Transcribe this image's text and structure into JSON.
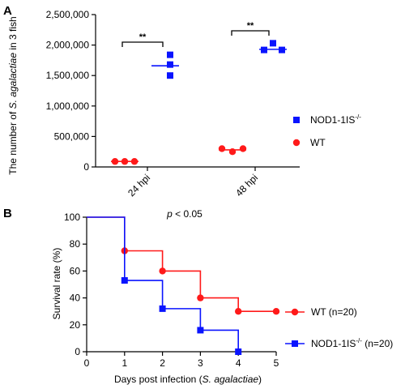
{
  "chart_data": [
    {
      "panel": "A",
      "type": "scatter",
      "ylabel_pre": "The number of ",
      "ylabel_italic": "S. agalactiae",
      "ylabel_post": " in 3 fish",
      "ylim": [
        0,
        2500000
      ],
      "yticks": [
        0,
        500000,
        1000000,
        1500000,
        2000000,
        2500000
      ],
      "ytick_labels": [
        "0",
        "500,000",
        "1,000,000",
        "1,500,000",
        "2,000,000",
        "2,500,000"
      ],
      "categories": [
        "24 hpi",
        "48 hpi"
      ],
      "series": [
        {
          "name": "NOD1-1IS",
          "name_sup": "-/-",
          "color": "#0a14ff",
          "marker": "square",
          "points": [
            [
              [
                1840000,
                1680000,
                1500000
              ],
              1660000
            ],
            [
              [
                2030000,
                1920000,
                1920000
              ],
              1930000
            ]
          ]
        },
        {
          "name": "WT",
          "color": "#ff1a1a",
          "marker": "circle",
          "points": [
            [
              [
                90000,
                90000,
                90000
              ],
              90000
            ],
            [
              [
                300000,
                250000,
                300000
              ],
              280000
            ]
          ]
        }
      ],
      "significance": [
        "**",
        "**"
      ],
      "legend_position": "right"
    },
    {
      "panel": "B",
      "type": "line",
      "xlabel_pre": "Days post infection (",
      "xlabel_italic": "S. agalactiae",
      "xlabel_post": ")",
      "ylabel": "Survival rate (%)",
      "xlim": [
        0,
        5
      ],
      "ylim": [
        0,
        100
      ],
      "xticks": [
        "0",
        "1",
        "2",
        "3",
        "4",
        "5"
      ],
      "yticks": [
        "0",
        "20",
        "40",
        "60",
        "80",
        "100"
      ],
      "annotation_italic": "p",
      "annotation_rest": " < 0.05",
      "series": [
        {
          "name": "WT (n=20)",
          "color": "#ff1a1a",
          "marker": "circle",
          "steps": [
            [
              0,
              100
            ],
            [
              1,
              75
            ],
            [
              2,
              60
            ],
            [
              3,
              40
            ],
            [
              4,
              30
            ],
            [
              5,
              30
            ]
          ]
        },
        {
          "name": "NOD1-1IS",
          "name_sup": "-/-",
          "name_post": " (n=20)",
          "color": "#0a14ff",
          "marker": "square",
          "steps": [
            [
              0,
              100
            ],
            [
              1,
              53
            ],
            [
              2,
              32
            ],
            [
              3,
              16
            ],
            [
              4,
              0
            ]
          ]
        }
      ],
      "legend_position": "right"
    }
  ]
}
